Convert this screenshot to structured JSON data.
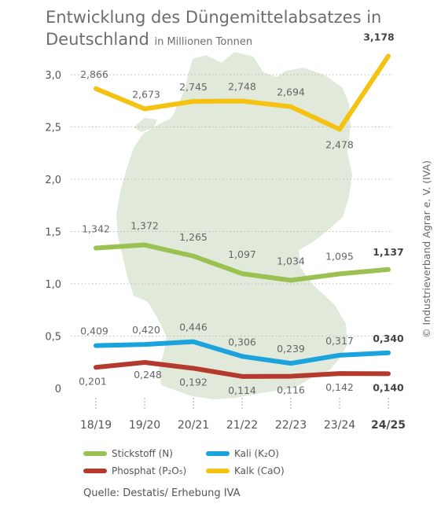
{
  "title": {
    "line1": "Entwicklung des Düngemittelabsatzes in",
    "line2": "Deutschland",
    "unit": "in Millionen Tonnen"
  },
  "copyright": "© Industrieverband Agrar e. V. (IVA)",
  "source": "Quelle: Destatis/ Erhebung IVA",
  "legend": [
    {
      "label": "Stickstoff (N)",
      "color": "#9bc153"
    },
    {
      "label": "Kali (K₂O)",
      "color": "#1aa3dc"
    },
    {
      "label": "Phosphat (P₂O₅)",
      "color": "#b53a2e"
    },
    {
      "label": "Kalk (CaO)",
      "color": "#f5c211"
    }
  ],
  "chart_data": {
    "type": "line",
    "title": "Entwicklung des Düngemittelabsatzes in Deutschland",
    "ylabel": "in Millionen Tonnen",
    "categories": [
      "18/19",
      "19/20",
      "20/21",
      "21/22",
      "22/23",
      "23/24",
      "24/25"
    ],
    "ylim": [
      0,
      3.0
    ],
    "yticks": [
      "0",
      "0,5",
      "1,0",
      "1,5",
      "2,0",
      "2,5",
      "3,0"
    ],
    "yticks_values": [
      0,
      0.5,
      1.0,
      1.5,
      2.0,
      2.5,
      3.0
    ],
    "grid": "horizontal-dotted",
    "series": [
      {
        "name": "Kalk (CaO)",
        "color": "#f5c211",
        "values": [
          2.866,
          2.673,
          2.745,
          2.748,
          2.694,
          2.478,
          3.178
        ],
        "labels": [
          "2,866",
          "2,673",
          "2,745",
          "2,748",
          "2,694",
          "2,478",
          "3,178"
        ]
      },
      {
        "name": "Stickstoff (N)",
        "color": "#9bc153",
        "values": [
          1.342,
          1.372,
          1.265,
          1.097,
          1.034,
          1.095,
          1.137
        ],
        "labels": [
          "1,342",
          "1,372",
          "1,265",
          "1,097",
          "1,034",
          "1,095",
          "1,137"
        ]
      },
      {
        "name": "Kali (K₂O)",
        "color": "#1aa3dc",
        "values": [
          0.409,
          0.42,
          0.446,
          0.306,
          0.239,
          0.317,
          0.34
        ],
        "labels": [
          "0,409",
          "0,420",
          "0,446",
          "0,306",
          "0,239",
          "0,317",
          "0,340"
        ]
      },
      {
        "name": "Phosphat (P₂O₅)",
        "color": "#b53a2e",
        "values": [
          0.201,
          0.248,
          0.192,
          0.114,
          0.116,
          0.142,
          0.14
        ],
        "labels": [
          "0,201",
          "0,248",
          "0,192",
          "0,114",
          "0,116",
          "0,142",
          "0,140"
        ]
      }
    ],
    "background": "map-of-germany"
  }
}
